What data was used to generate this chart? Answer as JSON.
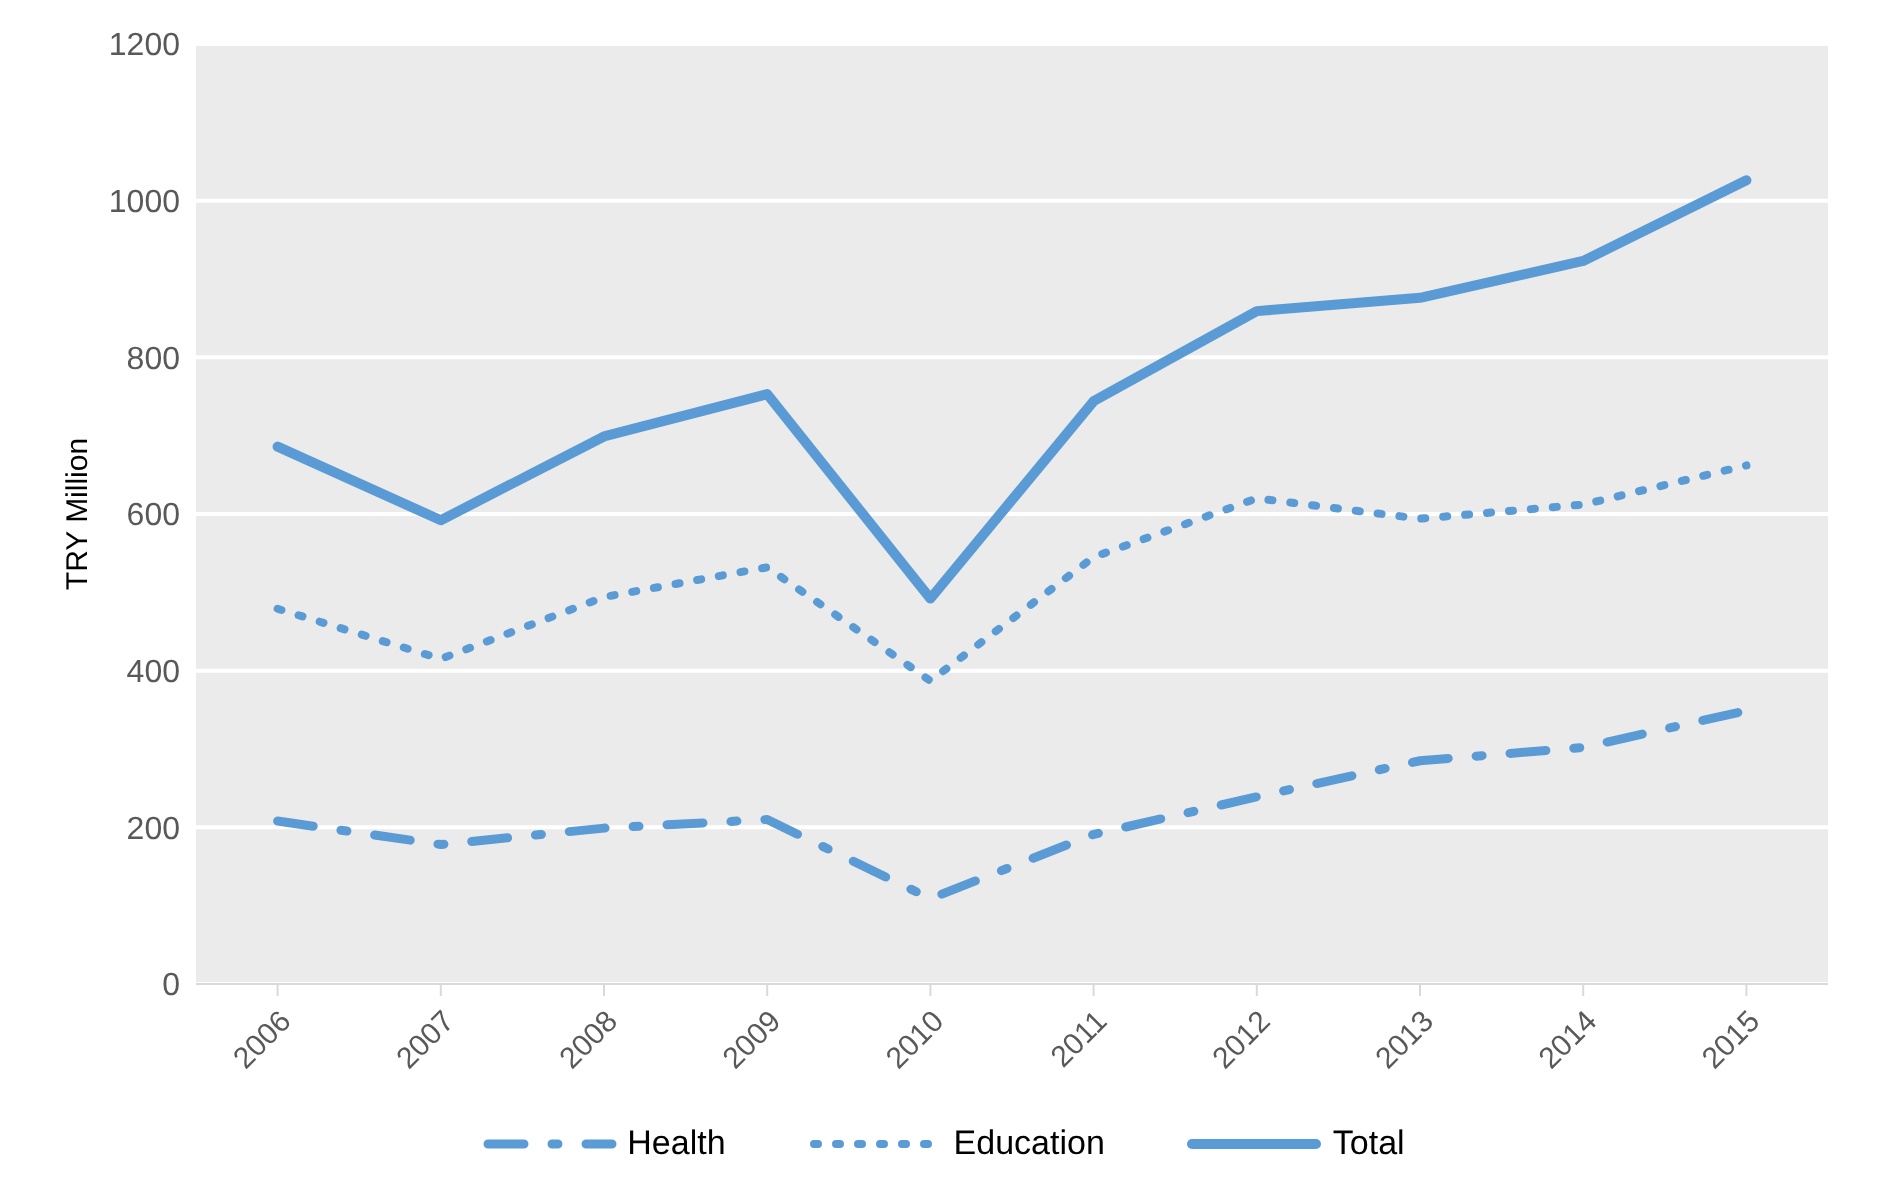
{
  "chart_data": {
    "type": "line",
    "ylabel": "TRY Million",
    "categories": [
      "2006",
      "2007",
      "2008",
      "2009",
      "2010",
      "2011",
      "2012",
      "2013",
      "2014",
      "2015"
    ],
    "series": [
      {
        "name": "Health",
        "color": "#5b9bd5",
        "line_style": "dashed",
        "values": [
          208,
          178,
          199,
          210,
          109,
          191,
          239,
          285,
          302,
          349
        ]
      },
      {
        "name": "Education",
        "color": "#5b9bd5",
        "line_style": "dotted",
        "values": [
          479,
          415,
          494,
          532,
          387,
          545,
          620,
          594,
          612,
          662
        ]
      },
      {
        "name": "Total",
        "color": "#5b9bd5",
        "line_style": "solid",
        "values": [
          686,
          592,
          699,
          753,
          492,
          744,
          859,
          876,
          923,
          1026
        ]
      }
    ],
    "ylim": [
      0,
      1200
    ],
    "yticks": [
      0,
      200,
      400,
      600,
      800,
      1000,
      1200
    ],
    "grid": "y",
    "legend": "bottom",
    "marker": "none"
  }
}
